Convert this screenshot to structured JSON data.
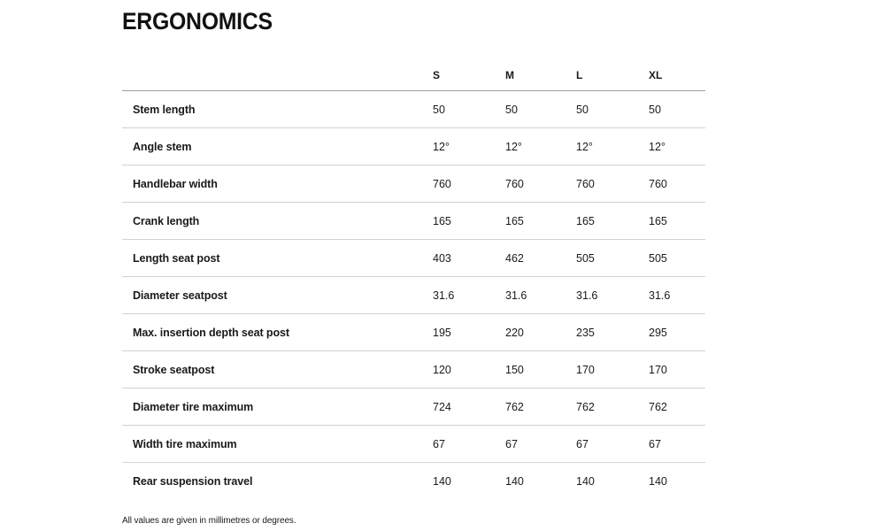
{
  "page": {
    "title": "ERGONOMICS",
    "footnote": "All values are given in millimetres or degrees."
  },
  "table": {
    "columns": [
      "S",
      "M",
      "L",
      "XL"
    ],
    "rows": [
      {
        "label": "Stem length",
        "values": [
          "50",
          "50",
          "50",
          "50"
        ]
      },
      {
        "label": "Angle stem",
        "values": [
          "12°",
          "12°",
          "12°",
          "12°"
        ]
      },
      {
        "label": "Handlebar width",
        "values": [
          "760",
          "760",
          "760",
          "760"
        ]
      },
      {
        "label": "Crank length",
        "values": [
          "165",
          "165",
          "165",
          "165"
        ]
      },
      {
        "label": "Length seat post",
        "values": [
          "403",
          "462",
          "505",
          "505"
        ]
      },
      {
        "label": "Diameter seatpost",
        "values": [
          "31.6",
          "31.6",
          "31.6",
          "31.6"
        ]
      },
      {
        "label": "Max. insertion depth seat post",
        "values": [
          "195",
          "220",
          "235",
          "295"
        ]
      },
      {
        "label": "Stroke seatpost",
        "values": [
          "120",
          "150",
          "170",
          "170"
        ]
      },
      {
        "label": "Diameter tire maximum",
        "values": [
          "724",
          "762",
          "762",
          "762"
        ]
      },
      {
        "label": "Width tire maximum",
        "values": [
          "67",
          "67",
          "67",
          "67"
        ]
      },
      {
        "label": "Rear suspension travel",
        "values": [
          "140",
          "140",
          "140",
          "140"
        ]
      }
    ]
  },
  "colors": {
    "text": "#1a1a1a",
    "title": "#111111",
    "header_border": "#9a9a9a",
    "row_border": "#d2d2d2",
    "bg": "#ffffff"
  }
}
